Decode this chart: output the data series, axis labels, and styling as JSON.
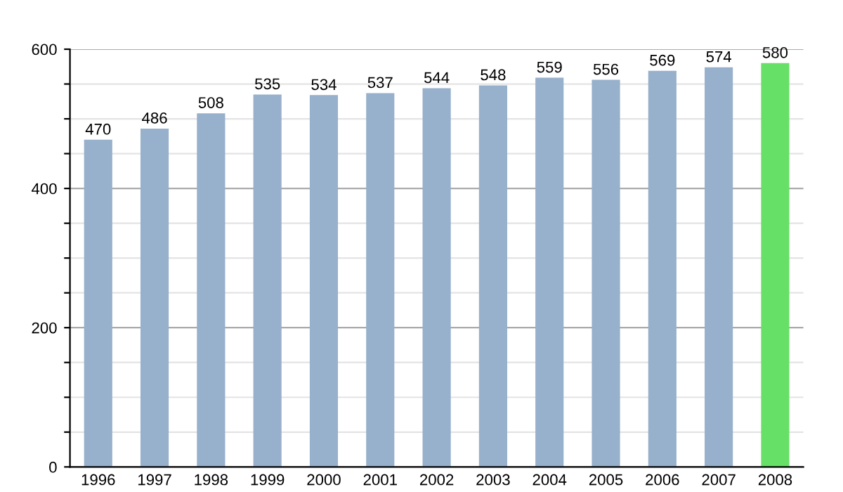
{
  "chart_data": {
    "type": "bar",
    "categories": [
      "1996",
      "1997",
      "1998",
      "1999",
      "2000",
      "2001",
      "2002",
      "2003",
      "2004",
      "2005",
      "2006",
      "2007",
      "2008"
    ],
    "values": [
      470,
      486,
      508,
      535,
      534,
      537,
      544,
      548,
      559,
      556,
      569,
      574,
      580
    ],
    "colors": [
      "#97b0cb",
      "#97b0cb",
      "#97b0cb",
      "#97b0cb",
      "#97b0cb",
      "#97b0cb",
      "#97b0cb",
      "#97b0cb",
      "#97b0cb",
      "#97b0cb",
      "#97b0cb",
      "#97b0cb",
      "#66e066"
    ],
    "data_labels": true,
    "ylim": [
      0,
      600
    ],
    "yticks": [
      0,
      {
        "value": 50,
        "label": null
      },
      {
        "value": 100,
        "label": null
      },
      {
        "value": 150,
        "label": null
      },
      200,
      {
        "value": 250,
        "label": null
      },
      {
        "value": 300,
        "label": null
      },
      {
        "value": 350,
        "label": null
      },
      400,
      {
        "value": 450,
        "label": null
      },
      {
        "value": 500,
        "label": null
      },
      {
        "value": 550,
        "label": null
      },
      600
    ],
    "grid": "y",
    "legend": false
  }
}
